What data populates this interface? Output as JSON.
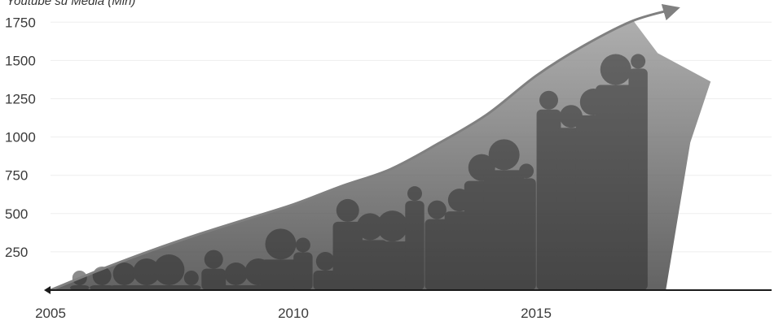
{
  "chart_data": {
    "type": "area",
    "title": "",
    "ylabel": "Youtube su Media (Mln)",
    "xlabel": "",
    "x_ticks": [
      "2005",
      "2010",
      "2015"
    ],
    "y_ticks": [
      "250",
      "500",
      "750",
      "1000",
      "1250",
      "1500",
      "1750"
    ],
    "xlim": [
      2005,
      2020
    ],
    "ylim": [
      0,
      1900
    ],
    "grid": "horizontal, faint",
    "legend": "none",
    "series": [
      {
        "x": [
          2005,
          2006,
          2007,
          2008,
          2009,
          2010,
          2011,
          2012,
          2013,
          2014,
          2015,
          2016,
          2017,
          2017.9
        ],
        "values": [
          0,
          130,
          250,
          360,
          460,
          560,
          680,
          790,
          960,
          1150,
          1400,
          1600,
          1760,
          1840
        ]
      }
    ],
    "background_image": "photo-collage-of-people",
    "colors": {
      "curve": "#808080",
      "axis": "#1a1a1a",
      "grid": "#eeeeee",
      "collage": "#6a6a6a"
    }
  }
}
